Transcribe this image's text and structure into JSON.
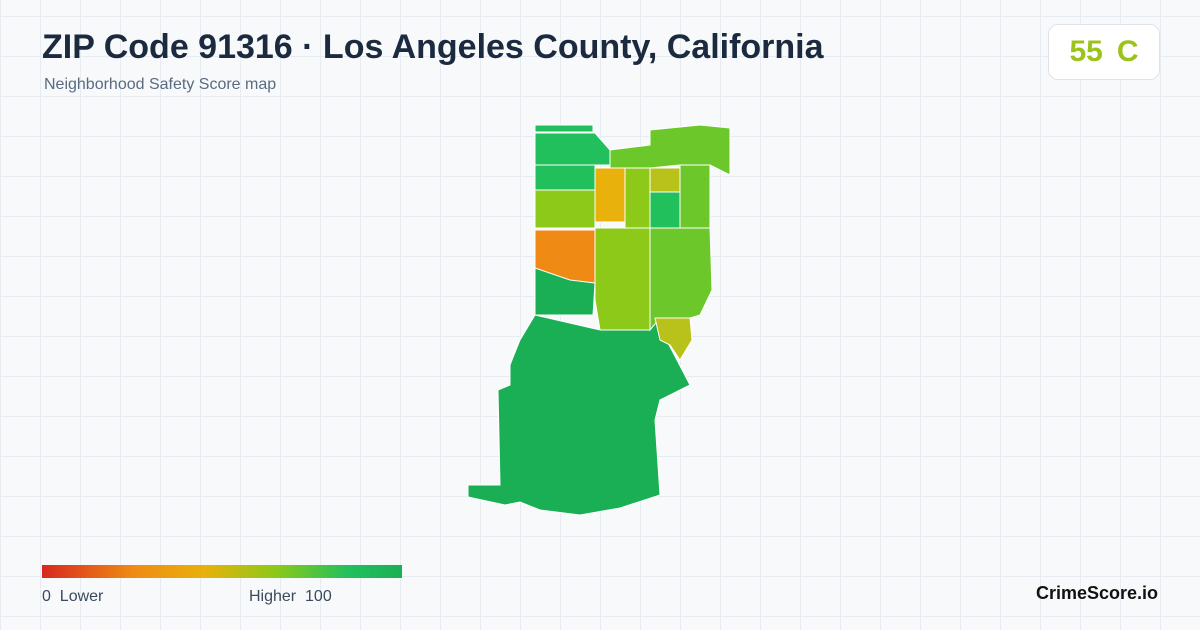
{
  "header": {
    "title": "ZIP Code 91316 · Los Angeles County, California",
    "subtitle": "Neighborhood Safety Score map"
  },
  "score": {
    "value": "55",
    "grade": "C"
  },
  "legend": {
    "min": "0",
    "min_label": "Lower",
    "max_label": "Higher",
    "max": "100"
  },
  "footer": {
    "brand": "CrimeScore.io"
  }
}
